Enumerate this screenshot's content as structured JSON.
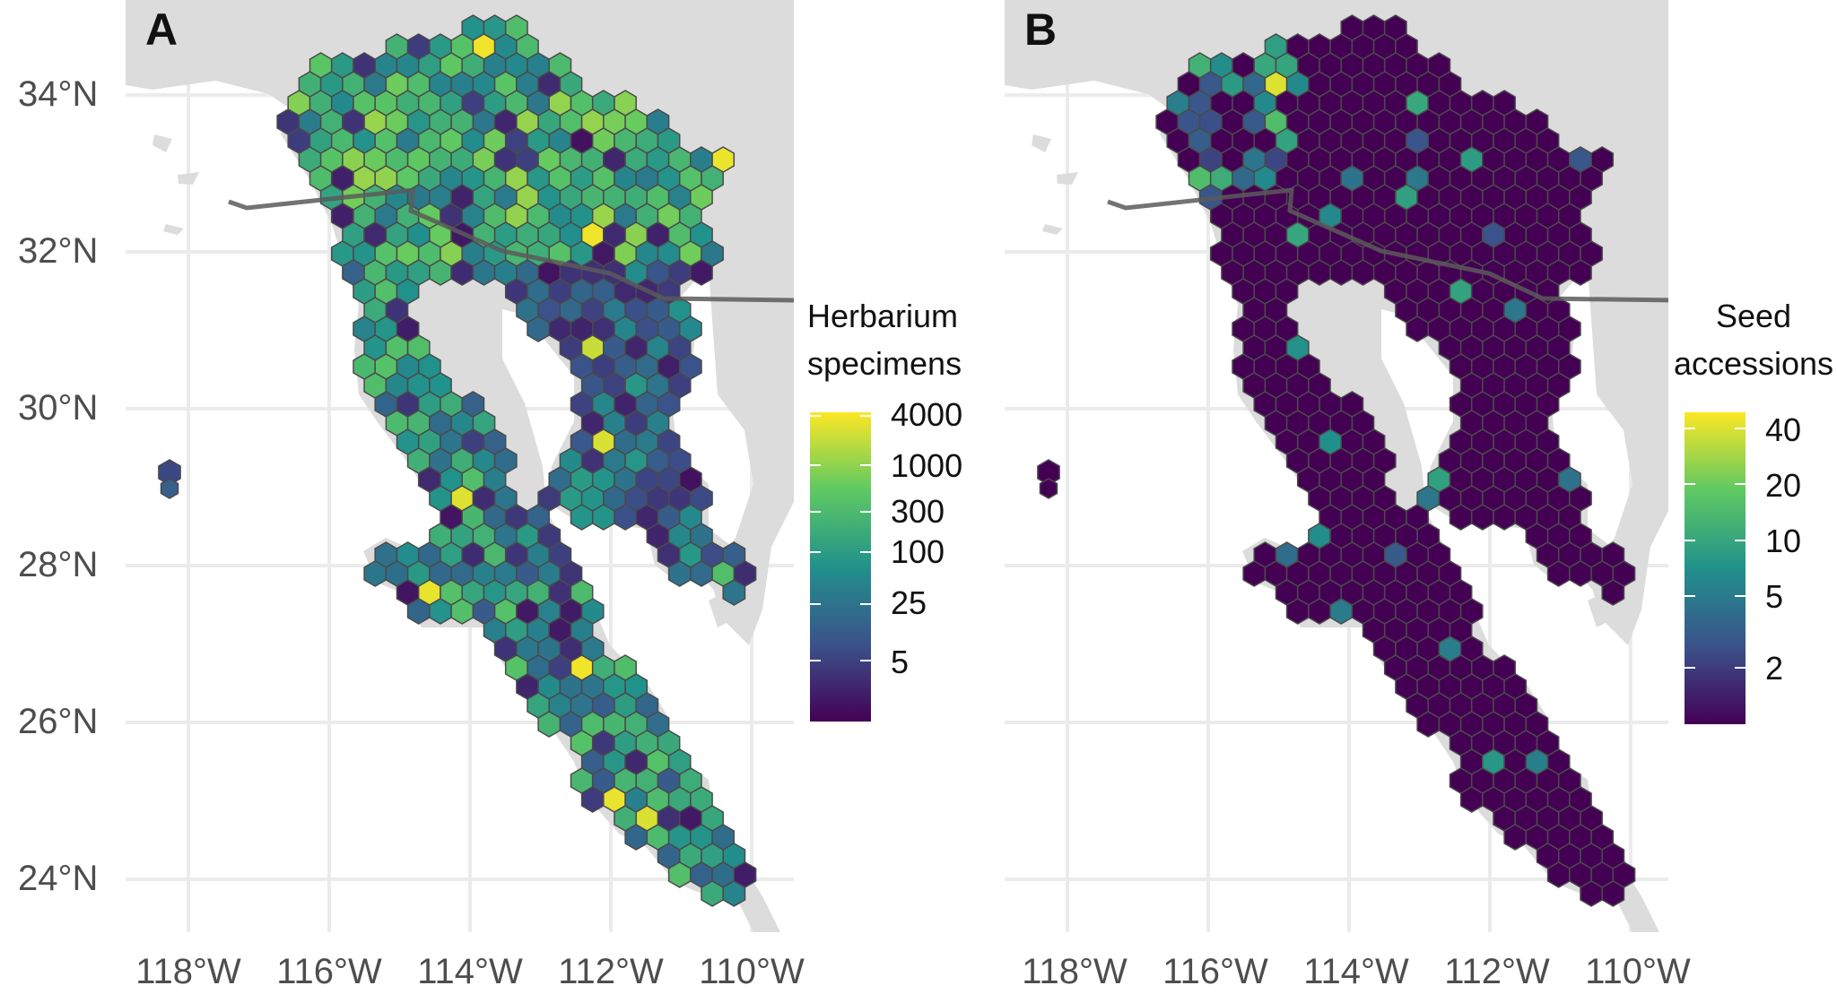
{
  "panels": [
    {
      "letter": "A",
      "legend": {
        "title_line1": "Herbarium",
        "title_line2": "specimens",
        "ticks": [
          "4000",
          "1000",
          "300",
          "100",
          "25",
          "5"
        ]
      }
    },
    {
      "letter": "B",
      "legend": {
        "title_line1": "Seed",
        "title_line2": "accessions",
        "ticks": [
          "40",
          "20",
          "10",
          "5",
          "2"
        ]
      }
    }
  ],
  "axes": {
    "lat_labels": [
      "34°N",
      "32°N",
      "30°N",
      "28°N",
      "26°N",
      "24°N"
    ],
    "lon_labels": [
      "118°W",
      "116°W",
      "114°W",
      "112°W",
      "110°W"
    ]
  },
  "colors": {
    "land": "#dcdcdc",
    "gridline": "#ebebeb",
    "border": "#5a5a5a",
    "hex_outline": "#4a4a4a",
    "viridis": [
      "#440154",
      "#3b528b",
      "#21918c",
      "#5ec962",
      "#fde725"
    ]
  }
}
